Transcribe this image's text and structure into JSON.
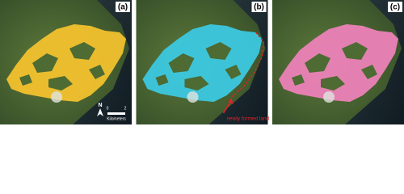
{
  "panels": [
    {
      "label": "(a)",
      "color": "#f2c12e"
    },
    {
      "label": "(b)",
      "color": "#3cc8e0"
    },
    {
      "label": "(c)",
      "color": "#ec82b8"
    }
  ],
  "annotation": {
    "text": "newly formed land",
    "color": "#e8202a"
  },
  "scale_bar": {
    "start": "0",
    "end": "2",
    "unit": "Kilometers",
    "north": "N"
  }
}
